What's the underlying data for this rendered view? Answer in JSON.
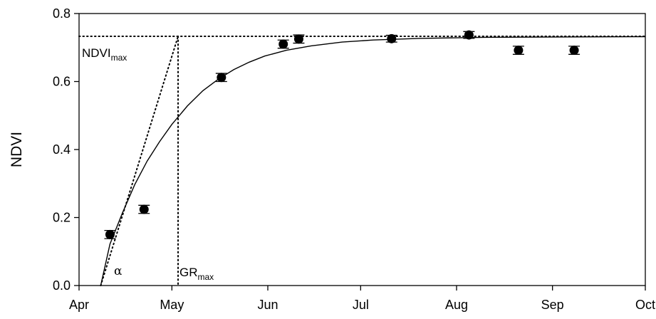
{
  "chart_data": {
    "type": "scatter",
    "ylabel": "NDVI",
    "xlabel": "",
    "x_ticks": [
      "Apr",
      "May",
      "Jun",
      "Jul",
      "Aug",
      "Sep",
      "Oct"
    ],
    "x_tick_dates": [
      "04-01",
      "05-01",
      "06-01",
      "07-01",
      "08-01",
      "09-01",
      "10-01"
    ],
    "y_ticks": [
      "0.0",
      "0.2",
      "0.4",
      "0.6",
      "0.8"
    ],
    "ylim": [
      0,
      0.8
    ],
    "xlim": [
      "04-01",
      "10-01"
    ],
    "points": [
      {
        "date": "04-11",
        "ndvi": 0.15,
        "err": 0.012
      },
      {
        "date": "04-22",
        "ndvi": 0.224,
        "err": 0.012
      },
      {
        "date": "05-17",
        "ndvi": 0.612,
        "err": 0.012
      },
      {
        "date": "06-06",
        "ndvi": 0.71,
        "err": 0.012
      },
      {
        "date": "06-11",
        "ndvi": 0.725,
        "err": 0.012
      },
      {
        "date": "07-11",
        "ndvi": 0.726,
        "err": 0.01
      },
      {
        "date": "08-05",
        "ndvi": 0.737,
        "err": 0.01
      },
      {
        "date": "08-21",
        "ndvi": 0.692,
        "err": 0.012
      },
      {
        "date": "09-08",
        "ndvi": 0.692,
        "err": 0.012
      }
    ],
    "fit_curve": [
      {
        "date": "04-08",
        "ndvi": 0.0
      },
      {
        "date": "04-11",
        "ndvi": 0.122
      },
      {
        "date": "04-15",
        "ndvi": 0.213
      },
      {
        "date": "04-19",
        "ndvi": 0.297
      },
      {
        "date": "04-23",
        "ndvi": 0.366
      },
      {
        "date": "04-27",
        "ndvi": 0.423
      },
      {
        "date": "05-01",
        "ndvi": 0.474
      },
      {
        "date": "05-06",
        "ndvi": 0.528
      },
      {
        "date": "05-11",
        "ndvi": 0.573
      },
      {
        "date": "05-16",
        "ndvi": 0.607
      },
      {
        "date": "05-21",
        "ndvi": 0.635
      },
      {
        "date": "05-26",
        "ndvi": 0.657
      },
      {
        "date": "05-31",
        "ndvi": 0.675
      },
      {
        "date": "06-07",
        "ndvi": 0.692
      },
      {
        "date": "06-15",
        "ndvi": 0.705
      },
      {
        "date": "06-25",
        "ndvi": 0.716
      },
      {
        "date": "07-05",
        "ndvi": 0.722
      },
      {
        "date": "07-20",
        "ndvi": 0.727
      },
      {
        "date": "08-10",
        "ndvi": 0.73
      },
      {
        "date": "09-05",
        "ndvi": 0.731
      },
      {
        "date": "10-01",
        "ndvi": 0.732
      }
    ],
    "ndvi_max": 0.733,
    "gr_max_date": "05-03",
    "alpha_line": [
      {
        "date": "04-08",
        "ndvi": 0.0
      },
      {
        "date": "05-03",
        "ndvi": 0.733
      }
    ],
    "annotations": {
      "ndvi_max_label": "NDVI",
      "ndvi_max_sub": "max",
      "gr_max_label": "GR",
      "gr_max_sub": "max",
      "alpha_label": "α"
    },
    "grid": false,
    "colors": {
      "marker": "#000000",
      "line": "#000000"
    }
  }
}
